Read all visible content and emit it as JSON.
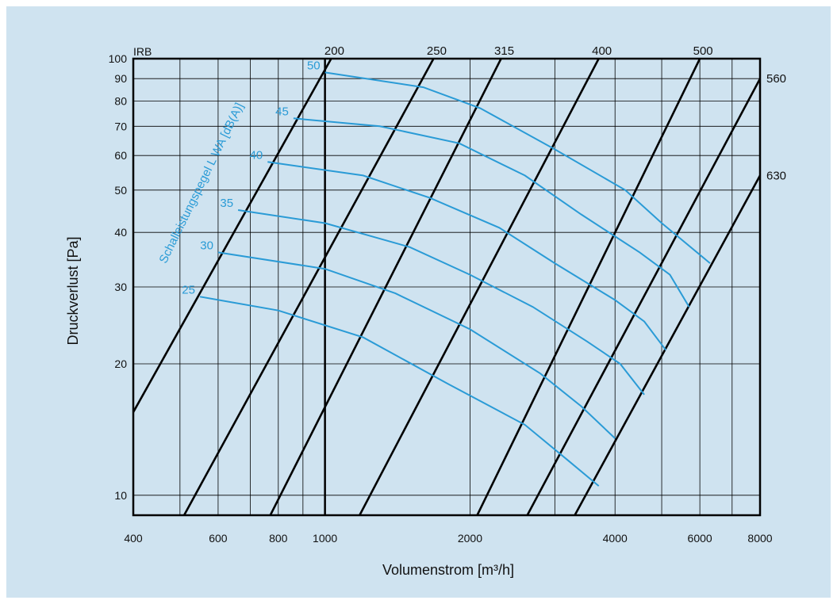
{
  "chart_data": {
    "type": "line",
    "x_scale": "log",
    "y_scale": "log",
    "xlabel": "Volumenstrom [m³/h]",
    "ylabel": "Druckverlust [Pa]",
    "curve_axis_label": "Schalleistungspegel L WA [dB(A)]",
    "size_label": "IRB",
    "xlim": [
      400,
      8000
    ],
    "ylim": [
      9,
      100
    ],
    "x_ticks": [
      400,
      600,
      800,
      1000,
      2000,
      4000,
      6000,
      8000
    ],
    "y_ticks": [
      10,
      20,
      30,
      40,
      50,
      60,
      70,
      80,
      90,
      100
    ],
    "grid": true,
    "colors": {
      "size_lines": "#000000",
      "sound_curves": "#2a9bd6",
      "background": "#cfe3f0"
    },
    "size_lines": [
      {
        "name": "200",
        "points": [
          [
            400,
            15.5
          ],
          [
            1030,
            100
          ]
        ]
      },
      {
        "name": "250",
        "points": [
          [
            510,
            9
          ],
          [
            1680,
            100
          ]
        ]
      },
      {
        "name": "315",
        "points": [
          [
            770,
            9
          ],
          [
            2320,
            100
          ]
        ]
      },
      {
        "name": "400",
        "points": [
          [
            1180,
            9
          ],
          [
            3700,
            100
          ]
        ]
      },
      {
        "name": "500",
        "points": [
          [
            2070,
            9
          ],
          [
            6000,
            100
          ]
        ]
      },
      {
        "name": "560",
        "points": [
          [
            2630,
            9
          ],
          [
            8000,
            90
          ]
        ]
      },
      {
        "name": "630",
        "points": [
          [
            3300,
            9
          ],
          [
            8000,
            54
          ]
        ]
      }
    ],
    "series": [
      {
        "name": "50",
        "points": [
          [
            1000,
            93
          ],
          [
            1600,
            86
          ],
          [
            2100,
            77
          ],
          [
            3000,
            62
          ],
          [
            4200,
            50
          ],
          [
            5000,
            42
          ],
          [
            6300,
            34
          ]
        ]
      },
      {
        "name": "45",
        "points": [
          [
            860,
            73
          ],
          [
            1300,
            70
          ],
          [
            1900,
            64
          ],
          [
            2600,
            54
          ],
          [
            3400,
            44
          ],
          [
            4500,
            36
          ],
          [
            5200,
            32
          ],
          [
            5700,
            27
          ]
        ]
      },
      {
        "name": "40",
        "points": [
          [
            760,
            58
          ],
          [
            1200,
            54
          ],
          [
            1650,
            48
          ],
          [
            2300,
            41
          ],
          [
            3000,
            34
          ],
          [
            4000,
            28
          ],
          [
            4600,
            25
          ],
          [
            5100,
            21.5
          ]
        ]
      },
      {
        "name": "35",
        "points": [
          [
            660,
            45
          ],
          [
            1000,
            42
          ],
          [
            1500,
            37
          ],
          [
            2000,
            32
          ],
          [
            2700,
            27
          ],
          [
            3500,
            22.5
          ],
          [
            4100,
            20
          ],
          [
            4600,
            17
          ]
        ]
      },
      {
        "name": "30",
        "points": [
          [
            600,
            36
          ],
          [
            1000,
            33
          ],
          [
            1400,
            29
          ],
          [
            2000,
            24
          ],
          [
            2800,
            19
          ],
          [
            3400,
            16
          ],
          [
            4000,
            13.5
          ]
        ]
      },
      {
        "name": "25",
        "points": [
          [
            550,
            28.5
          ],
          [
            800,
            26.5
          ],
          [
            1200,
            23
          ],
          [
            1800,
            18
          ],
          [
            2600,
            14.5
          ],
          [
            3200,
            12
          ],
          [
            3700,
            10.5
          ]
        ]
      }
    ]
  }
}
